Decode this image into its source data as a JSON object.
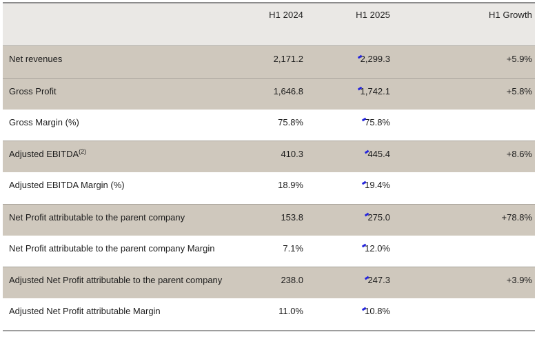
{
  "table": {
    "columns": {
      "label": "",
      "h1_2024": "H1 2024",
      "h1_2025": "H1 2025",
      "growth": "H1 Growth"
    },
    "rows": [
      {
        "label": "Net revenues",
        "h1_2024": "2,171.2",
        "h1_2025": "2,299.3",
        "growth": "+5.9%",
        "highlight": true
      },
      {
        "label": "Gross Profit",
        "h1_2024": "1,646.8",
        "h1_2025": "1,742.1",
        "growth": "+5.8%",
        "highlight": true
      },
      {
        "label": "Gross Margin (%)",
        "h1_2024": "75.8%",
        "h1_2025": "75.8%",
        "growth": "",
        "highlight": false
      },
      {
        "label": "Adjusted EBITDA",
        "superscript": "(2)",
        "h1_2024": "410.3",
        "h1_2025": "445.4",
        "growth": "+8.6%",
        "highlight": true
      },
      {
        "label": "Adjusted EBITDA Margin (%)",
        "h1_2024": "18.9%",
        "h1_2025": "19.4%",
        "growth": "",
        "highlight": false
      },
      {
        "label": "Net Profit attributable to the parent company",
        "h1_2024": "153.8",
        "h1_2025": "275.0",
        "growth": "+78.8%",
        "highlight": true
      },
      {
        "label": "Net Profit attributable to the parent company Margin",
        "h1_2024": "7.1%",
        "h1_2025": "12.0%",
        "growth": "",
        "highlight": false,
        "text_cursor": true
      },
      {
        "label": "Adjusted Net Profit attributable to the parent company",
        "h1_2024": "238.0",
        "h1_2025": "247.3",
        "growth": "+3.9%",
        "highlight": true
      },
      {
        "label": "Adjusted Net Profit attributable Margin",
        "h1_2024": "11.0%",
        "h1_2025": "10.8%",
        "growth": "",
        "highlight": false
      }
    ]
  },
  "colors": {
    "highlight_row_bg": "#cfc8bd",
    "header_bg": "#eae8e5",
    "row_rule": "#a6a29a",
    "table_top_border": "#8c8c8c",
    "table_bottom_border": "#9e9e9e",
    "text": "#1c1c1c",
    "text_cursor": "#2525dd"
  }
}
